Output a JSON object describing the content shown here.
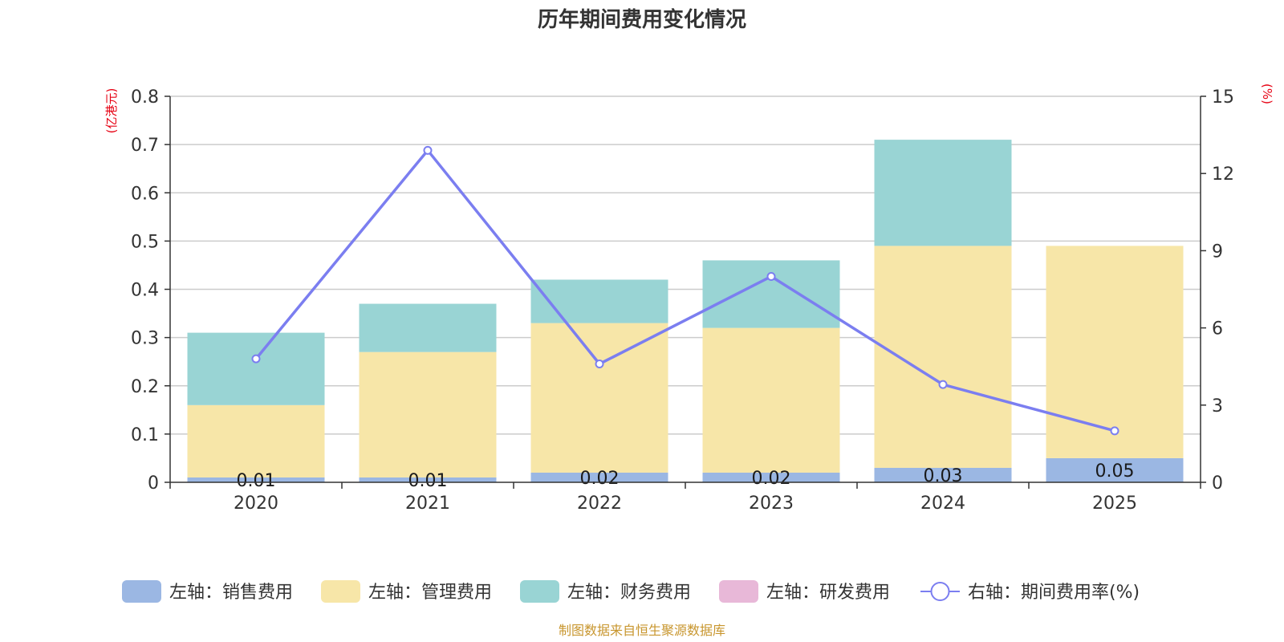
{
  "chart_data": {
    "type": "bar",
    "title": "历年期间费用变化情况",
    "categories": [
      "2020",
      "2021",
      "2022",
      "2023",
      "2024",
      "2025"
    ],
    "left_axis": {
      "unit": "(亿港元)",
      "ylim": [
        0,
        0.8
      ],
      "ticks": [
        "0",
        "0.1",
        "0.2",
        "0.3",
        "0.4",
        "0.5",
        "0.6",
        "0.7",
        "0.8"
      ]
    },
    "right_axis": {
      "unit": "(%)",
      "ylim": [
        0,
        15
      ],
      "ticks": [
        "0",
        "3",
        "6",
        "9",
        "12",
        "15"
      ]
    },
    "series": [
      {
        "name": "左轴：销售费用",
        "kind": "bar",
        "color": "#9bb7e3",
        "values": [
          0.01,
          0.01,
          0.02,
          0.02,
          0.03,
          0.05
        ],
        "labels": [
          "0.01",
          "0.01",
          "0.02",
          "0.02",
          "0.03",
          "0.05"
        ]
      },
      {
        "name": "左轴：管理费用",
        "kind": "bar",
        "color": "#f7e6a8",
        "values": [
          0.15,
          0.26,
          0.31,
          0.3,
          0.46,
          0.44
        ]
      },
      {
        "name": "左轴：财务费用",
        "kind": "bar",
        "color": "#99d4d4",
        "values": [
          0.15,
          0.1,
          0.09,
          0.14,
          0.22,
          0.0
        ]
      },
      {
        "name": "左轴：研发费用",
        "kind": "bar",
        "color": "#e8b8d8",
        "values": [
          0,
          0,
          0,
          0,
          0,
          0
        ]
      },
      {
        "name": "右轴：期间费用率(%)",
        "kind": "line",
        "color": "#7b7ef0",
        "values": [
          4.8,
          12.9,
          4.6,
          8.0,
          3.8,
          2.0
        ]
      }
    ],
    "grid": true,
    "legend": "bottom-center",
    "source": "制图数据来自恒生聚源数据库"
  }
}
